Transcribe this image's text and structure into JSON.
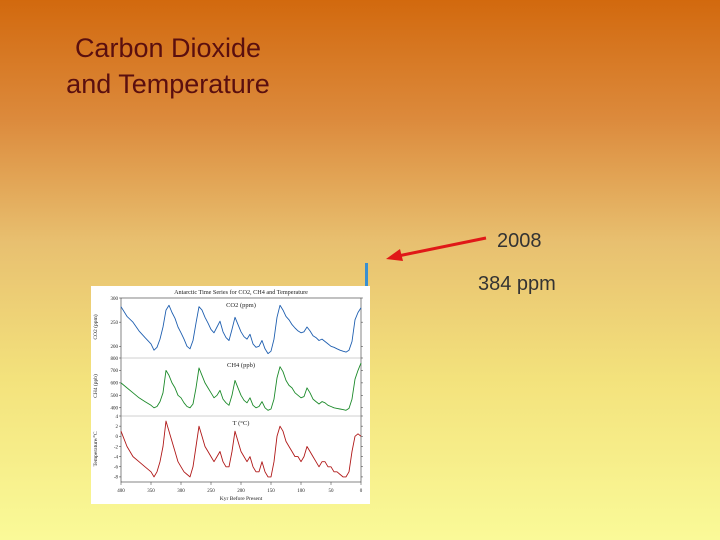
{
  "slide": {
    "title_line1": "Carbon Dioxide",
    "title_line2": "and Temperature",
    "annotation_year": "2008",
    "annotation_value": "384 ppm"
  },
  "colors": {
    "co2": "#1f5fb0",
    "ch4": "#1c8a2a",
    "temp": "#b01818",
    "arrow": "#e01818",
    "marker": "#3a8fd0"
  },
  "chart_data": {
    "type": "line",
    "title": "Antarctic Time Series for CO2, CH4 and Temperature",
    "xlabel": "Kyr Before Present",
    "x_ticks": [
      "400",
      "350",
      "300",
      "250",
      "200",
      "150",
      "100",
      "50",
      "0"
    ],
    "xlim": [
      400,
      0
    ],
    "panels": [
      {
        "name": "CO2 (ppm)",
        "ylabel": "CO2 (ppm)",
        "ylim": [
          180,
          300
        ],
        "y_ticks": [
          "300",
          "250",
          "200"
        ],
        "x": [
          400,
          390,
          380,
          370,
          360,
          350,
          345,
          340,
          335,
          330,
          325,
          320,
          315,
          310,
          305,
          300,
          295,
          290,
          285,
          280,
          275,
          270,
          265,
          260,
          255,
          250,
          245,
          240,
          235,
          230,
          225,
          220,
          215,
          210,
          205,
          200,
          195,
          190,
          185,
          180,
          175,
          170,
          165,
          160,
          155,
          150,
          145,
          140,
          135,
          130,
          125,
          120,
          115,
          110,
          105,
          100,
          95,
          90,
          85,
          80,
          75,
          70,
          65,
          60,
          55,
          50,
          45,
          40,
          35,
          30,
          25,
          20,
          15,
          10,
          5,
          0
        ],
        "values": [
          282,
          262,
          250,
          232,
          218,
          205,
          192,
          198,
          215,
          240,
          275,
          285,
          270,
          258,
          240,
          228,
          215,
          200,
          195,
          212,
          248,
          282,
          275,
          260,
          248,
          235,
          228,
          240,
          252,
          230,
          218,
          212,
          235,
          260,
          245,
          230,
          220,
          215,
          225,
          205,
          198,
          200,
          212,
          195,
          185,
          190,
          215,
          260,
          285,
          275,
          262,
          255,
          245,
          238,
          232,
          228,
          230,
          240,
          232,
          222,
          218,
          212,
          215,
          210,
          205,
          200,
          198,
          195,
          192,
          190,
          188,
          192,
          210,
          255,
          270,
          280
        ]
      },
      {
        "name": "CH4 (ppb)",
        "ylabel": "CH4 (ppb)",
        "ylim": [
          350,
          800
        ],
        "y_ticks": [
          "800",
          "700",
          "600",
          "500",
          "400"
        ],
        "x": [
          400,
          390,
          380,
          370,
          360,
          350,
          345,
          340,
          335,
          330,
          325,
          320,
          315,
          310,
          305,
          300,
          295,
          290,
          285,
          280,
          275,
          270,
          265,
          260,
          255,
          250,
          245,
          240,
          235,
          230,
          225,
          220,
          215,
          210,
          205,
          200,
          195,
          190,
          185,
          180,
          175,
          170,
          165,
          160,
          155,
          150,
          145,
          140,
          135,
          130,
          125,
          120,
          115,
          110,
          105,
          100,
          95,
          90,
          85,
          80,
          75,
          70,
          65,
          60,
          55,
          50,
          45,
          40,
          35,
          30,
          25,
          20,
          15,
          10,
          5,
          0
        ],
        "values": [
          600,
          560,
          520,
          480,
          450,
          420,
          400,
          410,
          450,
          520,
          700,
          660,
          600,
          560,
          500,
          480,
          440,
          410,
          400,
          430,
          560,
          720,
          660,
          600,
          560,
          520,
          480,
          500,
          540,
          470,
          440,
          420,
          500,
          620,
          560,
          500,
          460,
          440,
          480,
          420,
          400,
          410,
          450,
          400,
          380,
          390,
          470,
          640,
          730,
          690,
          620,
          580,
          560,
          520,
          500,
          480,
          490,
          560,
          520,
          470,
          450,
          430,
          450,
          440,
          420,
          410,
          400,
          395,
          390,
          385,
          380,
          395,
          470,
          630,
          700,
          760
        ]
      },
      {
        "name": "T (°C)",
        "ylabel": "Temperature/°C",
        "ylim": [
          -9,
          4
        ],
        "y_ticks": [
          "4",
          "2",
          "0",
          "-2",
          "-4",
          "-6",
          "-8"
        ],
        "x": [
          400,
          390,
          380,
          370,
          360,
          350,
          345,
          340,
          335,
          330,
          325,
          320,
          315,
          310,
          305,
          300,
          295,
          290,
          285,
          280,
          275,
          270,
          265,
          260,
          255,
          250,
          245,
          240,
          235,
          230,
          225,
          220,
          215,
          210,
          205,
          200,
          195,
          190,
          185,
          180,
          175,
          170,
          165,
          160,
          155,
          150,
          145,
          140,
          135,
          130,
          125,
          120,
          115,
          110,
          105,
          100,
          95,
          90,
          85,
          80,
          75,
          70,
          65,
          60,
          55,
          50,
          45,
          40,
          35,
          30,
          25,
          20,
          15,
          10,
          5,
          0
        ],
        "values": [
          1,
          -2,
          -4,
          -5,
          -6,
          -7,
          -8,
          -7,
          -5,
          -2,
          3,
          1,
          -1,
          -3,
          -5,
          -6,
          -7,
          -7.5,
          -8,
          -6,
          -2,
          2,
          0,
          -2,
          -3,
          -4,
          -5,
          -4,
          -3,
          -5,
          -6,
          -6,
          -3,
          1,
          -1,
          -3,
          -4,
          -5,
          -4,
          -6,
          -7,
          -7,
          -5,
          -7,
          -8,
          -8,
          -5,
          0,
          2,
          1,
          -1,
          -2,
          -3,
          -4,
          -4,
          -5,
          -4,
          -2,
          -3,
          -4,
          -5,
          -6,
          -5,
          -5,
          -6,
          -6,
          -7,
          -7,
          -7.5,
          -8,
          -8,
          -7,
          -3,
          0,
          0.5,
          0
        ]
      }
    ]
  }
}
